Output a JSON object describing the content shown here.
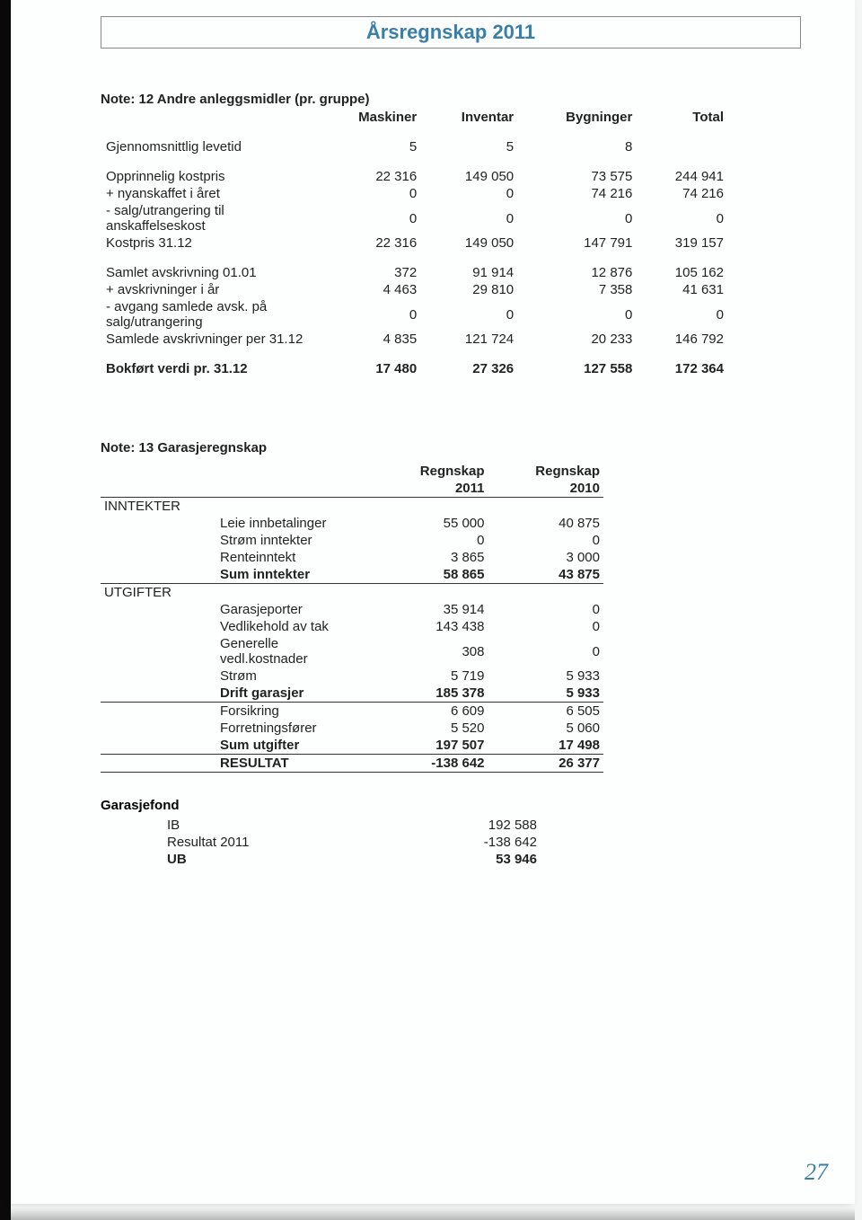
{
  "header": {
    "title": "Årsregnskap 2011"
  },
  "note12": {
    "title": "Note: 12 Andre anleggsmidler (pr. gruppe)",
    "columns": [
      "Maskiner",
      "Inventar",
      "Bygninger",
      "Total"
    ],
    "rows": [
      {
        "label": "Gjennomsnittlig levetid",
        "vals": [
          "5",
          "5",
          "8",
          ""
        ]
      },
      {
        "label": "Opprinnelig kostpris",
        "vals": [
          "22 316",
          "149 050",
          "73 575",
          "244 941"
        ]
      },
      {
        "label": "+ nyanskaffet i året",
        "vals": [
          "0",
          "0",
          "74 216",
          "74 216"
        ]
      },
      {
        "label": "- salg/utrangering til anskaffelseskost",
        "vals": [
          "0",
          "0",
          "0",
          "0"
        ]
      },
      {
        "label": "Kostpris 31.12",
        "vals": [
          "22 316",
          "149 050",
          "147 791",
          "319 157"
        ]
      },
      {
        "label": "Samlet avskrivning 01.01",
        "vals": [
          "372",
          "91 914",
          "12 876",
          "105 162"
        ]
      },
      {
        "label": "+ avskrivninger i år",
        "vals": [
          "4 463",
          "29 810",
          "7 358",
          "41 631"
        ]
      },
      {
        "label": "- avgang samlede avsk. på salg/utrangering",
        "vals": [
          "0",
          "0",
          "0",
          "0"
        ]
      },
      {
        "label": "Samlede avskrivninger per 31.12",
        "vals": [
          "4 835",
          "121 724",
          "20 233",
          "146 792"
        ]
      }
    ],
    "footer": {
      "label": "Bokført verdi pr. 31.12",
      "vals": [
        "17 480",
        "27 326",
        "127 558",
        "172 364"
      ]
    }
  },
  "note13": {
    "title": "Note: 13  Garasjeregnskap",
    "headers": {
      "col1": "Regnskap",
      "col2": "Regnskap",
      "year1": "2011",
      "year2": "2010"
    },
    "sections": {
      "inntekter": {
        "name": "INNTEKTER",
        "rows": [
          {
            "label": "Leie innbetalinger",
            "v1": "55 000",
            "v2": "40 875"
          },
          {
            "label": "Strøm inntekter",
            "v1": "0",
            "v2": "0"
          },
          {
            "label": "Renteinntekt",
            "v1": "3 865",
            "v2": "3 000"
          }
        ],
        "sum": {
          "label": "Sum inntekter",
          "v1": "58 865",
          "v2": "43 875"
        }
      },
      "utgifter": {
        "name": "UTGIFTER",
        "rows": [
          {
            "label": "Garasjeporter",
            "v1": "35 914",
            "v2": "0"
          },
          {
            "label": "Vedlikehold av tak",
            "v1": "143 438",
            "v2": "0"
          },
          {
            "label": "Generelle vedl.kostnader",
            "v1": "308",
            "v2": "0"
          },
          {
            "label": "Strøm",
            "v1": "5 719",
            "v2": "5 933"
          }
        ],
        "drift": {
          "label": "Drift garasjer",
          "v1": "185 378",
          "v2": "5 933"
        },
        "rows2": [
          {
            "label": "Forsikring",
            "v1": "6 609",
            "v2": "6 505"
          },
          {
            "label": "Forretningsfører",
            "v1": "5 520",
            "v2": "5 060"
          }
        ],
        "sum": {
          "label": "Sum utgifter",
          "v1": "197 507",
          "v2": "17 498"
        }
      },
      "resultat": {
        "label": "RESULTAT",
        "v1": "-138 642",
        "v2": "26 377"
      }
    }
  },
  "garasjefond": {
    "title": "Garasjefond",
    "rows": [
      {
        "label": "IB",
        "val": "192 588"
      },
      {
        "label": "Resultat 2011",
        "val": "-138 642"
      }
    ],
    "ub": {
      "label": "UB",
      "val": "53 946"
    }
  },
  "pageNumber": "27",
  "colors": {
    "headerText": "#3a7fa5",
    "bodyText": "#222",
    "background": "#fdfefe"
  }
}
